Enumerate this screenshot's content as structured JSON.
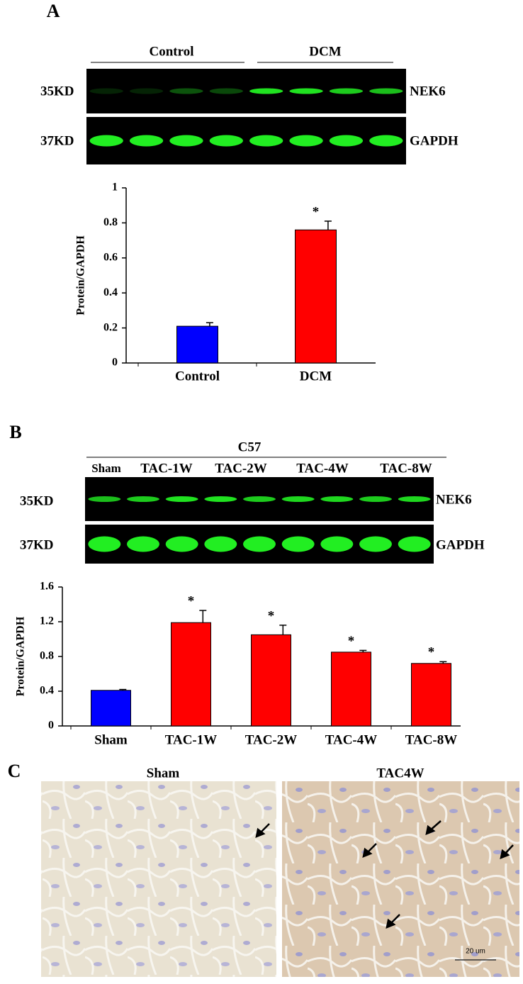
{
  "figure": {
    "panel_a": {
      "label": "A",
      "groups": [
        "Control",
        "DCM"
      ],
      "bands": [
        {
          "size": "35KD",
          "protein": "NEK6"
        },
        {
          "size": "37KD",
          "protein": "GAPDH"
        }
      ]
    },
    "panel_b": {
      "label": "B",
      "strain": "C57",
      "lanes": [
        "Sham",
        "TAC-1W",
        "TAC-2W",
        "TAC-4W",
        "TAC-8W"
      ],
      "bands": [
        {
          "size": "35KD",
          "protein": "NEK6"
        },
        {
          "size": "37KD",
          "protein": "GAPDH"
        }
      ]
    },
    "panel_c": {
      "label": "C",
      "images": [
        {
          "title": "Sham"
        },
        {
          "title": "TAC4W",
          "scale": "20 um"
        }
      ]
    }
  },
  "chart_data": [
    {
      "type": "bar",
      "y_label": "Protein/GAPDH",
      "categories": [
        "Control",
        "DCM"
      ],
      "values": [
        0.21,
        0.76
      ],
      "errors": [
        0.02,
        0.05
      ],
      "significance": [
        null,
        "*"
      ],
      "colors": [
        "#0000ff",
        "#ff0000"
      ],
      "ylim": [
        0,
        1
      ],
      "yticks": [
        0,
        0.2,
        0.4,
        0.6,
        0.8,
        1
      ]
    },
    {
      "type": "bar",
      "y_label": "Protein/GAPDH",
      "categories": [
        "Sham",
        "TAC-1W",
        "TAC-2W",
        "TAC-4W",
        "TAC-8W"
      ],
      "values": [
        0.41,
        1.19,
        1.05,
        0.85,
        0.72
      ],
      "errors": [
        0.01,
        0.14,
        0.11,
        0.02,
        0.02
      ],
      "significance": [
        null,
        "*",
        "*",
        "*",
        "*"
      ],
      "colors": [
        "#0000ff",
        "#ff0000",
        "#ff0000",
        "#ff0000",
        "#ff0000"
      ],
      "ylim": [
        0,
        1.6
      ],
      "yticks": [
        0,
        0.4,
        0.8,
        1.2,
        1.6
      ]
    }
  ]
}
